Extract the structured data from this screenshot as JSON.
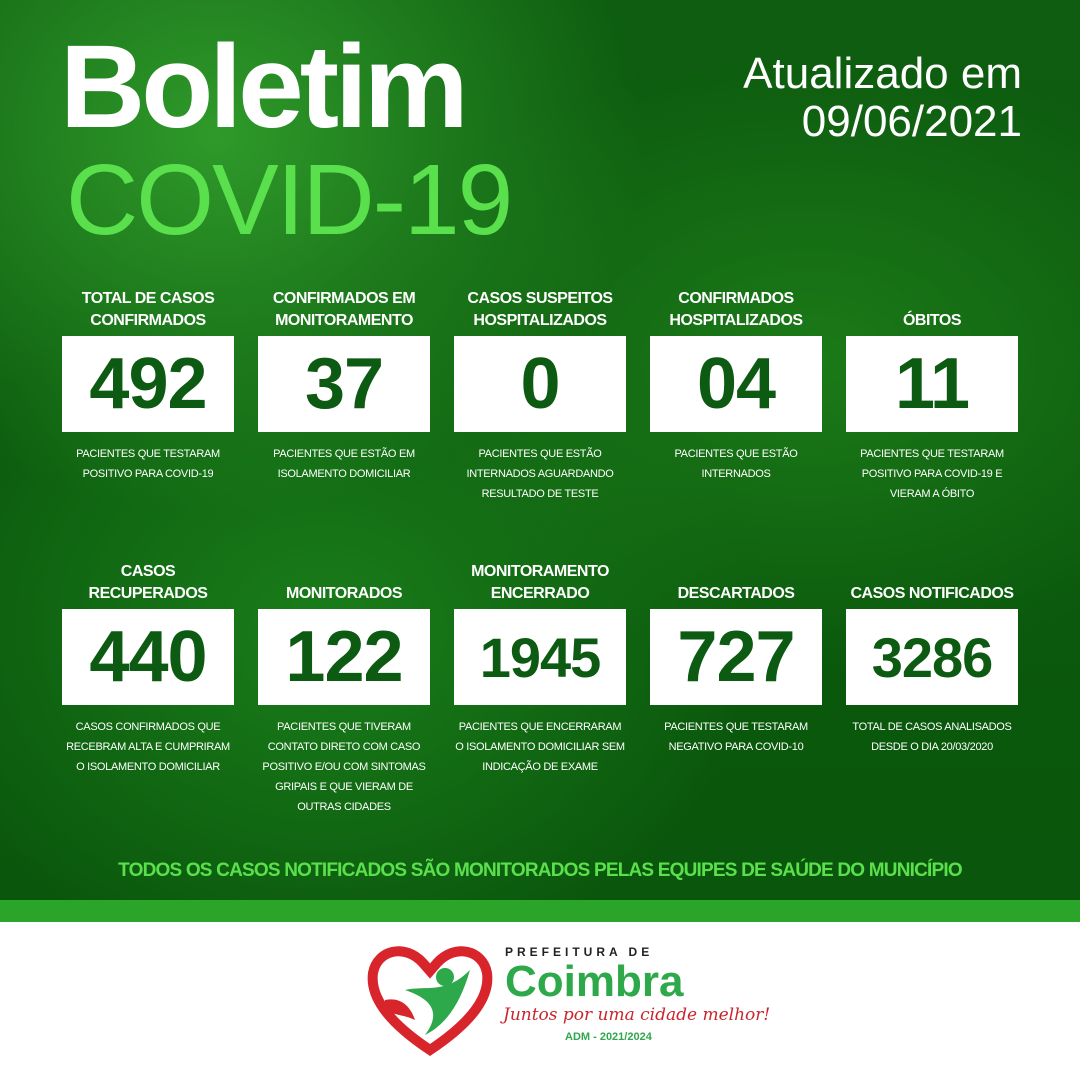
{
  "header": {
    "title": "Boletim",
    "subtitle": "COVID-19",
    "updated_label": "Atualizado em",
    "updated_date": "09/06/2021"
  },
  "row1": [
    {
      "title": "TOTAL DE CASOS CONFIRMADOS",
      "value": "492",
      "desc": "PACIENTES QUE TESTARAM POSITIVO PARA COVID-19"
    },
    {
      "title": "CONFIRMADOS EM MONITORAMENTO",
      "value": "37",
      "desc": "PACIENTES QUE ESTÃO EM ISOLAMENTO DOMICILIAR"
    },
    {
      "title": "CASOS SUSPEITOS HOSPITALIZADOS",
      "value": "0",
      "desc": "PACIENTES QUE ESTÃO INTERNADOS AGUARDANDO RESULTADO DE TESTE"
    },
    {
      "title": "CONFIRMADOS HOSPITALIZADOS",
      "value": "04",
      "desc": "PACIENTES QUE ESTÃO INTERNADOS"
    },
    {
      "title": "ÓBITOS",
      "value": "11",
      "desc": "PACIENTES QUE TESTARAM POSITIVO PARA COVID-19 E VIERAM A ÓBITO"
    }
  ],
  "row2": [
    {
      "title": "CASOS RECUPERADOS",
      "value": "440",
      "desc": "CASOS CONFIRMADOS QUE RECEBRAM ALTA E CUMPRIRAM O ISOLAMENTO DOMICILIAR"
    },
    {
      "title": "MONITORADOS",
      "value": "122",
      "desc": "PACIENTES QUE TIVERAM CONTATO DIRETO COM CASO POSITIVO E/OU COM SINTOMAS GRIPAIS E QUE VIERAM DE OUTRAS CIDADES"
    },
    {
      "title": "MONITORAMENTO ENCERRADO",
      "value": "1945",
      "desc": "PACIENTES QUE ENCERRARAM O ISOLAMENTO DOMICILIAR SEM INDICAÇÃO DE EXAME"
    },
    {
      "title": "DESCARTADOS",
      "value": "727",
      "desc": "PACIENTES QUE TESTARAM NEGATIVO PARA COVID-10"
    },
    {
      "title": "CASOS NOTIFICADOS",
      "value": "3286",
      "desc": "TOTAL DE CASOS ANALISADOS DESDE O DIA 20/03/2020"
    }
  ],
  "footer_note": "TODOS OS CASOS NOTIFICADOS SÃO MONITORADOS PELAS EQUIPES DE SAÚDE DO MUNICÍPIO",
  "logo": {
    "prefix": "PREFEITURA DE",
    "name": "Coimbra",
    "slogan": "Juntos por uma cidade melhor!",
    "term": "ADM - 2021/2024"
  },
  "colors": {
    "background": "#0e5d10",
    "accent": "#5be04d",
    "value_text": "#0d5a12",
    "bar": "#2aa52a",
    "logo_red": "#c8262c",
    "logo_green": "#2da84a"
  }
}
